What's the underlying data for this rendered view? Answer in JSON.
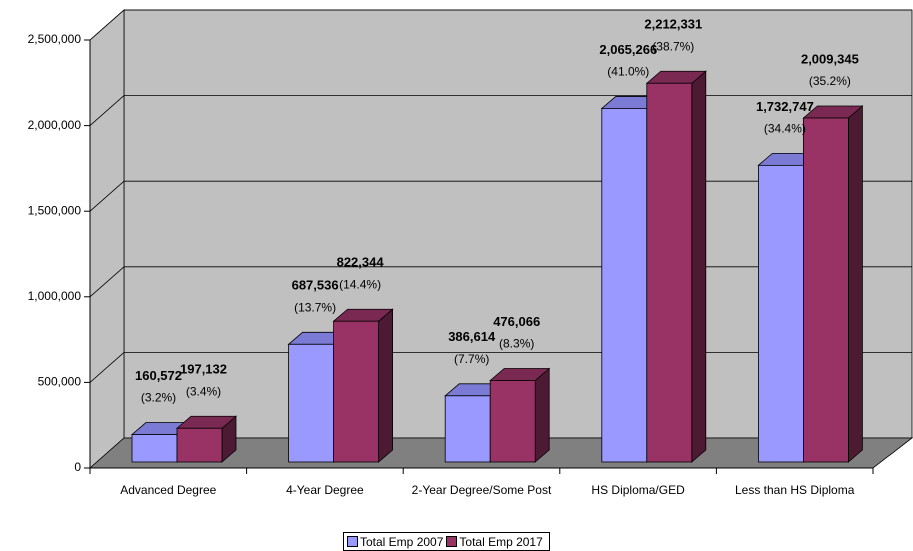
{
  "chart_data": {
    "type": "bar3d",
    "categories": [
      "Advanced Degree",
      "4-Year Degree",
      "2-Year Degree/Some Post",
      "HS Diploma/GED",
      "Less than HS Diploma"
    ],
    "series": [
      {
        "name": "Total Emp 2007",
        "color": "#9999ff",
        "top_color": "#7b7bd6",
        "side_color": "#5f5fa8",
        "values": [
          160572,
          687536,
          386614,
          2065266,
          1732747
        ],
        "value_labels": [
          "160,572",
          "687,536",
          "386,614",
          "2,065,266",
          "1,732,747"
        ],
        "share_labels": [
          "(3.2%)",
          "(13.7%)",
          "(7.7%)",
          "(41.0%)",
          "(34.4%)"
        ]
      },
      {
        "name": "Total Emp 2017",
        "color": "#993366",
        "top_color": "#7a2952",
        "side_color": "#4d1a33",
        "values": [
          197132,
          822344,
          476066,
          2212331,
          2009345
        ],
        "value_labels": [
          "197,132",
          "822,344",
          "476,066",
          "2,212,331",
          "2,009,345"
        ],
        "share_labels": [
          "(3.4%)",
          "(14.4%)",
          "(8.3%)",
          "(38.7%)",
          "(35.2%)"
        ]
      }
    ],
    "ylim": [
      0,
      2500000
    ],
    "yticks": [
      0,
      {
        "value": 500000,
        "label": "500,000"
      },
      {
        "value": 1000000,
        "label": "1,000,000"
      },
      {
        "value": 1500000,
        "label": "1,500,000"
      },
      {
        "value": 2000000,
        "label": "2,000,000"
      },
      {
        "value": 2500000,
        "label": "2,500,000"
      }
    ],
    "grid": true,
    "legend": "bottom"
  }
}
